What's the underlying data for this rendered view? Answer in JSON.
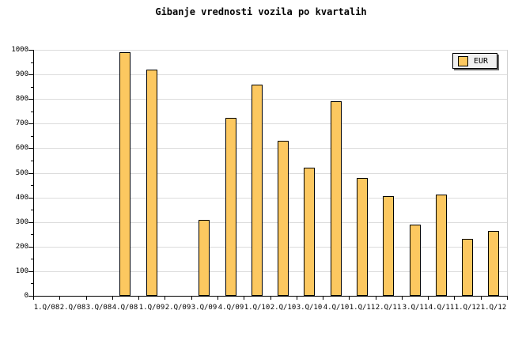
{
  "title": "Gibanje vrednosti vozila po kvartalih",
  "legend": {
    "label": "EUR"
  },
  "colors": {
    "background": "#ffffff",
    "bar_fill": "#fcc860",
    "bar_border": "#000000",
    "gridline": "#dcdcdc",
    "plot_right_border": "#d0d0d0",
    "axis": "#000000",
    "legend_bg": "#f0f0f0",
    "legend_shadow": "#666666",
    "text": "#000000"
  },
  "chart_data": {
    "type": "bar",
    "title": "Gibanje vrednosti vozila po kvartalih",
    "categories": [
      "1.Q/08",
      "2.Q/08",
      "3.Q/08",
      "4.Q/08",
      "1.Q/09",
      "2.Q/09",
      "3.Q/09",
      "4.Q/09",
      "1.Q/10",
      "2.Q/10",
      "3.Q/10",
      "4.Q/10",
      "1.Q/11",
      "2.Q/11",
      "3.Q/11",
      "4.Q/11",
      "1.Q/12",
      "1.Q/12"
    ],
    "series": [
      {
        "name": "EUR",
        "values": [
          null,
          null,
          null,
          990,
          920,
          null,
          310,
          725,
          860,
          630,
          520,
          790,
          480,
          405,
          290,
          410,
          230,
          265
        ]
      }
    ],
    "xlabel": "",
    "ylabel": "",
    "ylim": [
      0,
      1000
    ],
    "ytick_step": 100,
    "ytick_minor_step": 50,
    "ytick_labels": [
      "0",
      "100",
      "200",
      "300",
      "400",
      "500",
      "600",
      "700",
      "800",
      "900",
      "1000"
    ],
    "grid": "horizontal-major",
    "legend_position": "top-right",
    "legend_entries": [
      "EUR"
    ]
  }
}
